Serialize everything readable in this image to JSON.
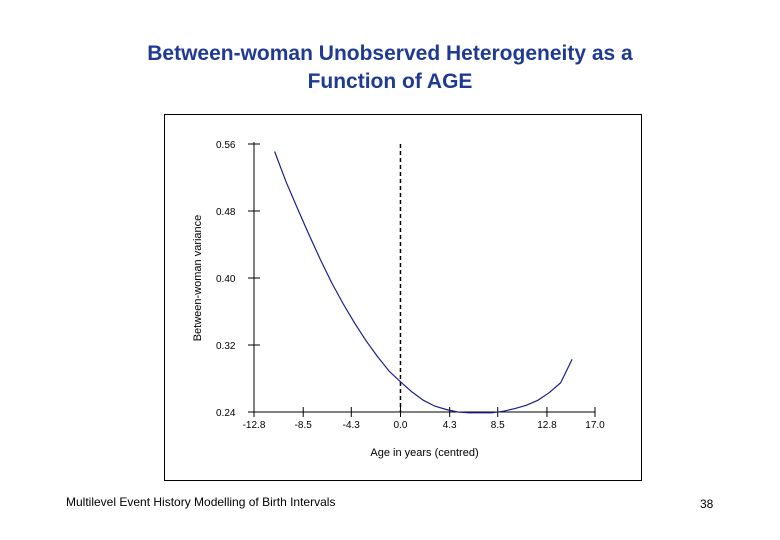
{
  "slide": {
    "title_line1": "Between-woman Unobserved Heterogeneity as a",
    "title_line2": "Function of AGE",
    "footer": "Multilevel Event History Modelling of Birth Intervals",
    "page_number": "38"
  },
  "chart_data": {
    "type": "line",
    "title": "Between-woman Unobserved Heterogeneity as a Function of AGE",
    "xlabel": "Age in years (centred)",
    "ylabel": "Between-woman variance",
    "xlim": [
      -12.8,
      17.0
    ],
    "ylim": [
      0.24,
      0.56
    ],
    "xticks": [
      "-12.8",
      "-8.5",
      "-4.3",
      "0.0",
      "4.3",
      "8.5",
      "12.8",
      "17.0"
    ],
    "yticks": [
      "0.24",
      "0.32",
      "0.40",
      "0.48",
      "0.56"
    ],
    "vline_x": 0.0,
    "grid": false,
    "series": [
      {
        "x": [
          -11.0,
          -10.0,
          -9.0,
          -8.0,
          -7.0,
          -6.0,
          -5.0,
          -4.0,
          -3.0,
          -2.0,
          -1.0,
          0.0,
          1.0,
          2.0,
          3.0,
          4.0,
          5.0,
          6.0,
          7.0,
          8.0,
          9.0,
          10.0,
          11.0,
          12.0,
          13.0,
          14.0,
          15.0
        ],
        "y": [
          0.551,
          0.515,
          0.483,
          0.452,
          0.422,
          0.394,
          0.369,
          0.346,
          0.325,
          0.306,
          0.289,
          0.276,
          0.264,
          0.254,
          0.247,
          0.243,
          0.24,
          0.239,
          0.239,
          0.239,
          0.241,
          0.244,
          0.248,
          0.254,
          0.263,
          0.275,
          0.303
        ]
      }
    ]
  }
}
